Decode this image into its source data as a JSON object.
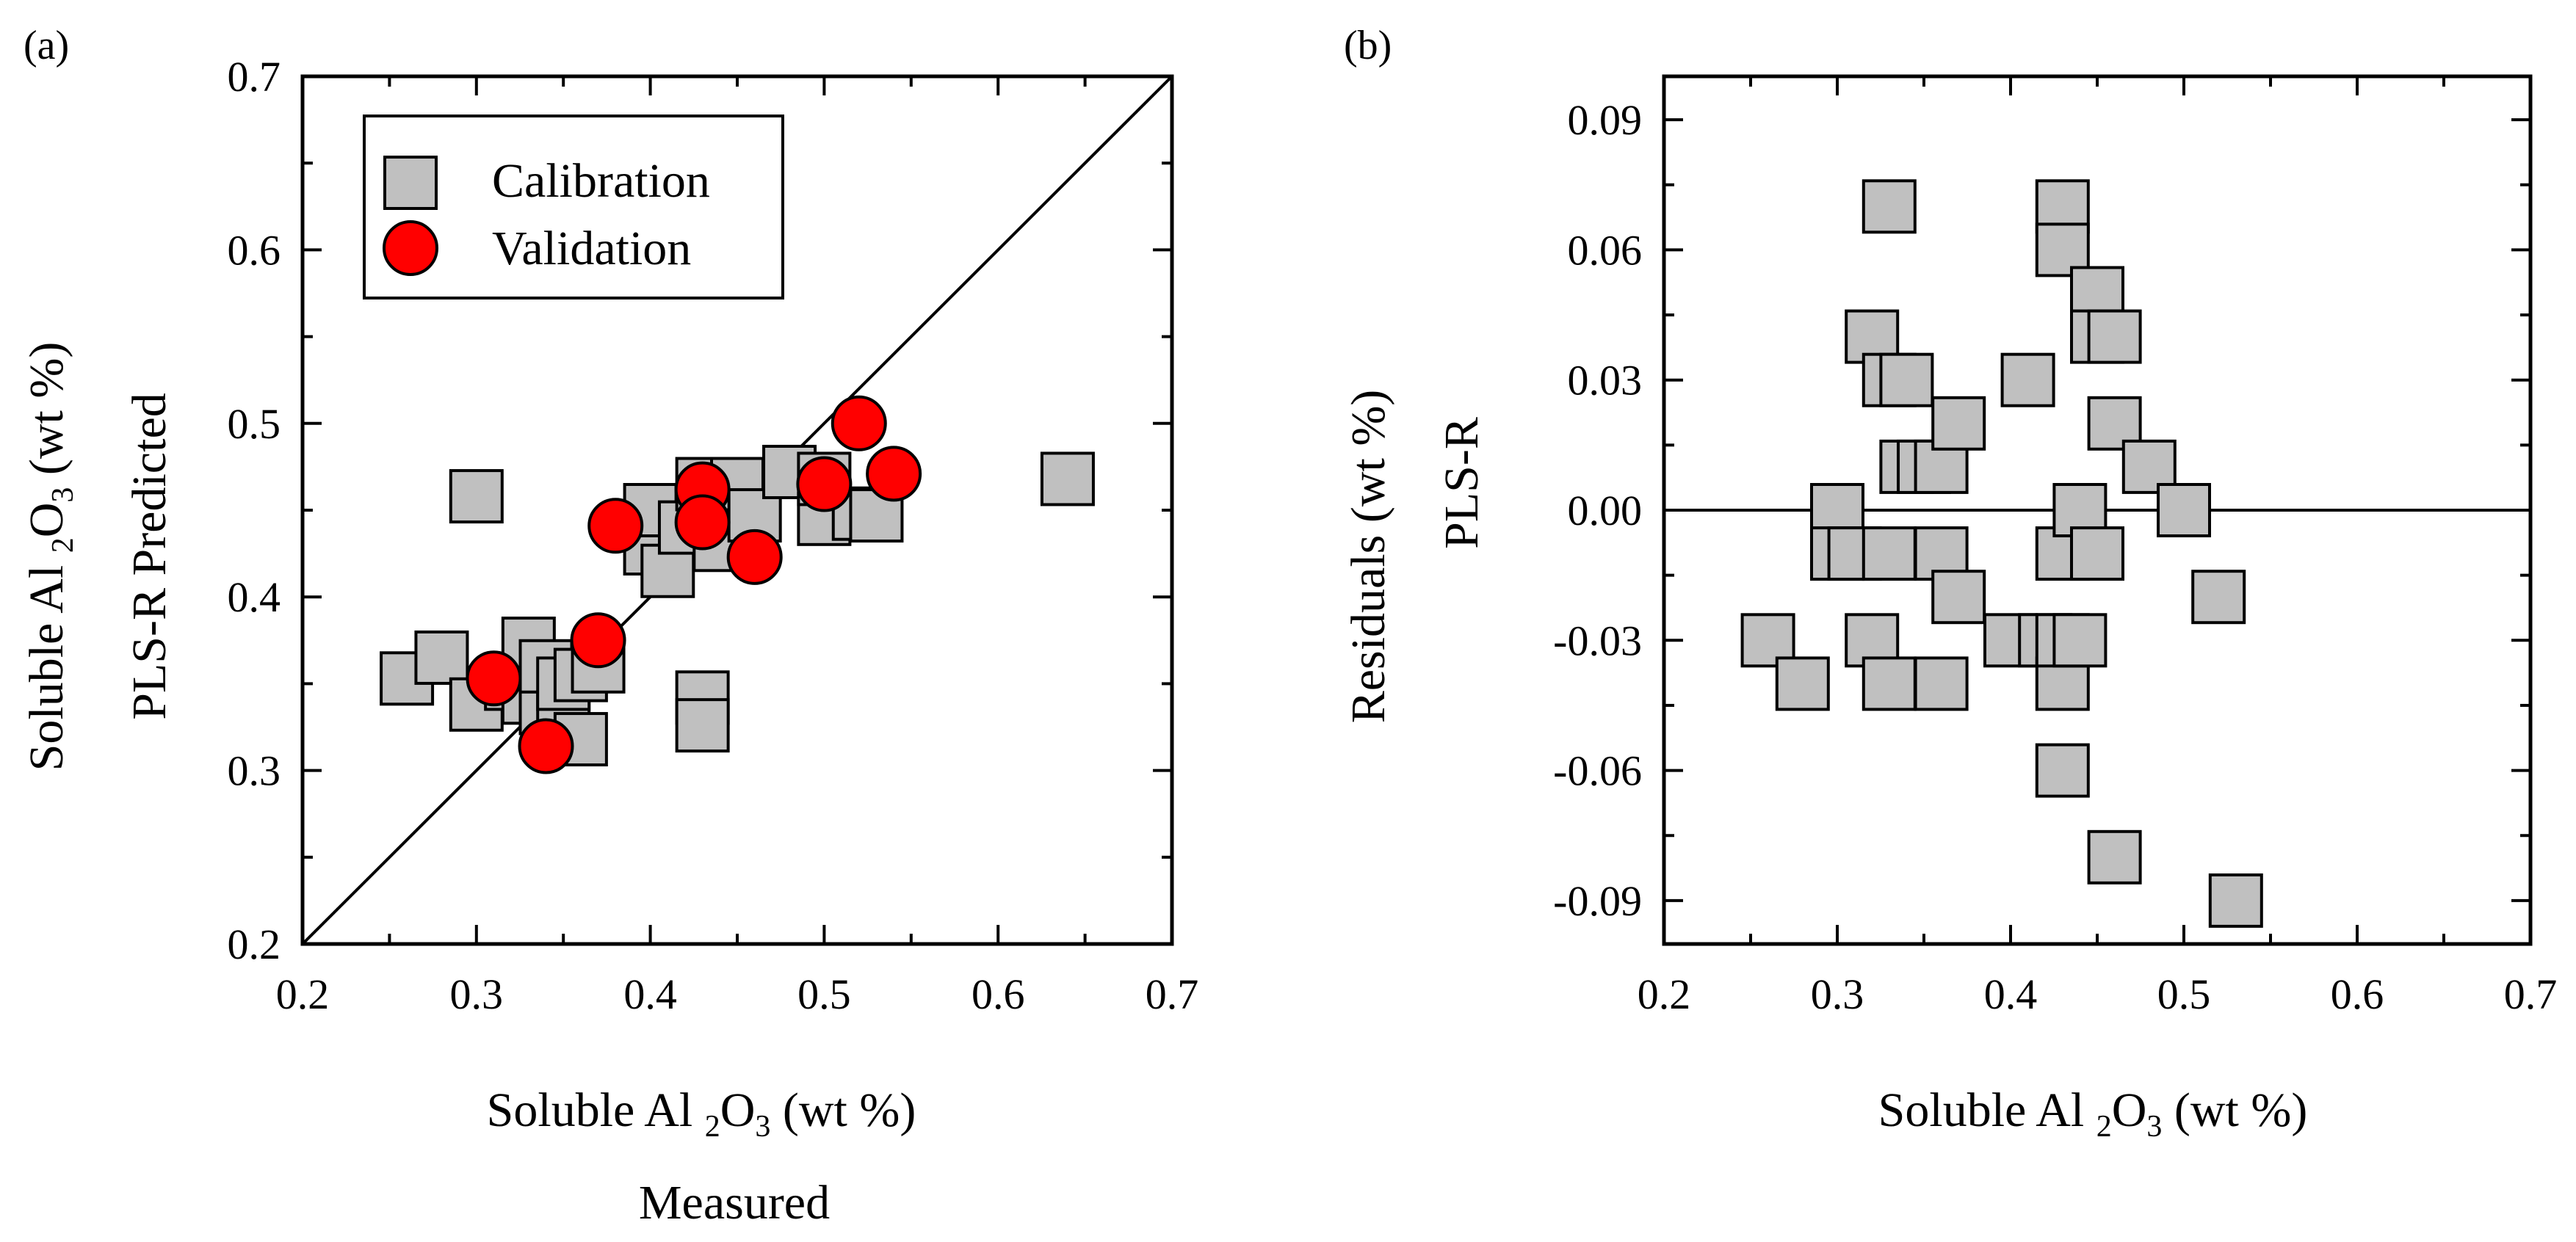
{
  "figure": {
    "panel_a_label": "(a)",
    "panel_b_label": "(b)"
  },
  "chart_data": [
    {
      "panel": "(a)",
      "type": "scatter",
      "xlabel_parts": [
        "Soluble Al ",
        "2",
        "O",
        "3",
        " (wt %)"
      ],
      "xlabel_line2": "Measured",
      "ylabel_parts": [
        "Soluble Al ",
        "2",
        "O",
        "3",
        " (wt %)"
      ],
      "ylabel_line2": "PLS-R Predicted",
      "xlim": [
        0.2,
        0.7
      ],
      "ylim": [
        0.2,
        0.7
      ],
      "xticks": [
        "0.2",
        "0.3",
        "0.4",
        "0.5",
        "0.6",
        "0.7"
      ],
      "yticks": [
        "0.2",
        "0.3",
        "0.4",
        "0.5",
        "0.6",
        "0.7"
      ],
      "xtick_values": [
        0.2,
        0.3,
        0.4,
        0.5,
        0.6,
        0.7
      ],
      "ytick_values": [
        0.2,
        0.3,
        0.4,
        0.5,
        0.6,
        0.7
      ],
      "reference_line": "1:1",
      "legend": [
        "Calibration",
        "Validation"
      ],
      "legend_position": "top-left",
      "series": [
        {
          "name": "Calibration",
          "marker": "square",
          "color": "#c0c0c0",
          "x": [
            0.26,
            0.28,
            0.3,
            0.3,
            0.32,
            0.33,
            0.33,
            0.34,
            0.34,
            0.35,
            0.35,
            0.36,
            0.36,
            0.37,
            0.4,
            0.4,
            0.41,
            0.42,
            0.43,
            0.43,
            0.43,
            0.44,
            0.44,
            0.45,
            0.46,
            0.48,
            0.5,
            0.5,
            0.52,
            0.53,
            0.64
          ],
          "y": [
            0.353,
            0.365,
            0.458,
            0.338,
            0.35,
            0.342,
            0.373,
            0.336,
            0.36,
            0.33,
            0.35,
            0.355,
            0.318,
            0.36,
            0.428,
            0.45,
            0.415,
            0.44,
            0.342,
            0.326,
            0.465,
            0.46,
            0.43,
            0.465,
            0.447,
            0.472,
            0.445,
            0.468,
            0.448,
            0.447,
            0.468
          ]
        },
        {
          "name": "Validation",
          "marker": "circle",
          "color": "#ff0000",
          "x": [
            0.31,
            0.34,
            0.37,
            0.38,
            0.43,
            0.43,
            0.46,
            0.5,
            0.52,
            0.54
          ],
          "y": [
            0.353,
            0.314,
            0.375,
            0.441,
            0.462,
            0.443,
            0.423,
            0.465,
            0.5,
            0.471
          ]
        }
      ]
    },
    {
      "panel": "(b)",
      "type": "scatter",
      "xlabel_parts": [
        "Soluble Al ",
        "2",
        "O",
        "3",
        " (wt %)"
      ],
      "ylabel": "Residuals  (wt %)",
      "ylabel_line2": "PLS-R",
      "xlim": [
        0.2,
        0.7
      ],
      "ylim": [
        -0.1,
        0.1
      ],
      "xticks": [
        "0.2",
        "0.3",
        "0.4",
        "0.5",
        "0.6",
        "0.7"
      ],
      "yticks": [
        "-0.09",
        "-0.06",
        "-0.03",
        "0.00",
        "0.03",
        "0.06",
        "0.09"
      ],
      "xtick_values": [
        0.2,
        0.3,
        0.4,
        0.5,
        0.6,
        0.7
      ],
      "ytick_values": [
        -0.09,
        -0.06,
        -0.03,
        0.0,
        0.03,
        0.06,
        0.09
      ],
      "reference_line": "y=0",
      "series": [
        {
          "name": "Residuals",
          "marker": "square",
          "color": "#c0c0c0",
          "x": [
            0.26,
            0.28,
            0.3,
            0.3,
            0.31,
            0.32,
            0.32,
            0.33,
            0.33,
            0.33,
            0.33,
            0.34,
            0.34,
            0.35,
            0.36,
            0.36,
            0.36,
            0.37,
            0.37,
            0.4,
            0.41,
            0.42,
            0.43,
            0.43,
            0.43,
            0.43,
            0.43,
            0.43,
            0.44,
            0.44,
            0.45,
            0.45,
            0.45,
            0.46,
            0.46,
            0.46,
            0.48,
            0.5,
            0.52,
            0.53
          ],
          "y": [
            -0.03,
            -0.04,
            0.0,
            -0.01,
            -0.01,
            0.04,
            -0.03,
            0.07,
            0.03,
            -0.01,
            -0.04,
            0.01,
            0.03,
            0.01,
            0.01,
            -0.01,
            -0.04,
            0.02,
            -0.02,
            -0.03,
            0.03,
            -0.03,
            0.07,
            0.06,
            -0.01,
            -0.04,
            -0.06,
            -0.03,
            0.0,
            -0.03,
            0.05,
            0.04,
            -0.01,
            0.04,
            0.02,
            -0.08,
            0.01,
            0.0,
            -0.02,
            -0.09
          ]
        }
      ]
    }
  ]
}
